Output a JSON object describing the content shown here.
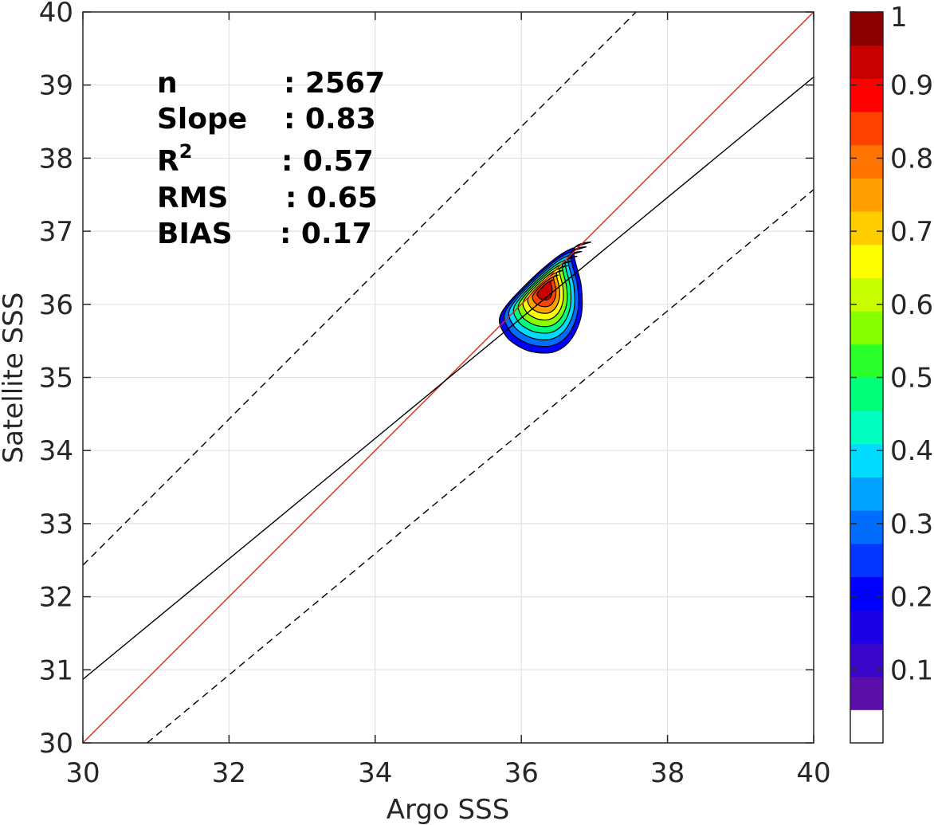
{
  "chart_data": {
    "type": "heatmap",
    "xlabel": "Argo SSS",
    "ylabel": "Satellite SSS",
    "xlim": [
      30,
      40
    ],
    "ylim": [
      30,
      40
    ],
    "xticks": [
      "30",
      "32",
      "34",
      "36",
      "38",
      "40"
    ],
    "yticks": [
      "30",
      "31",
      "32",
      "33",
      "34",
      "35",
      "36",
      "37",
      "38",
      "39",
      "40"
    ],
    "grid": true,
    "stats": [
      {
        "label": "n",
        "value": ": 2567"
      },
      {
        "label": "Slope",
        "value": ": 0.83"
      },
      {
        "label": "R",
        "sup": "2",
        "value": ": 0.57"
      },
      {
        "label": "RMS",
        "value": ": 0.65"
      },
      {
        "label": "BIAS",
        "value": ": 0.17"
      }
    ],
    "reference_lines": {
      "one_to_one": {
        "x": [
          30,
          40
        ],
        "y": [
          30,
          40
        ],
        "color": "#e0261f"
      },
      "fit": {
        "x": [
          30,
          40
        ],
        "y": [
          30.87,
          39.11
        ],
        "color": "#000000"
      },
      "upper_bound": {
        "x": [
          30,
          40
        ],
        "y": [
          32.43,
          42.43
        ],
        "color": "#000000",
        "dash": true
      },
      "lower_bound": {
        "x": [
          30.88,
          40
        ],
        "y": [
          30,
          37.57
        ],
        "color": "#000000",
        "dash": true
      }
    },
    "density": {
      "peak_x": 36.33,
      "peak_y": 36.22,
      "levels": [
        0.1,
        0.2,
        0.3,
        0.4,
        0.5,
        0.6,
        0.7,
        0.8,
        0.9
      ],
      "outer_contour": [
        [
          36.95,
          36.85
        ],
        [
          36.6,
          36.72
        ],
        [
          36.25,
          36.45
        ],
        [
          35.85,
          36.05
        ],
        [
          35.7,
          35.8
        ],
        [
          35.78,
          35.58
        ],
        [
          35.92,
          35.45
        ],
        [
          36.15,
          35.35
        ],
        [
          36.45,
          35.35
        ],
        [
          36.68,
          35.52
        ],
        [
          36.82,
          35.85
        ],
        [
          36.82,
          36.25
        ],
        [
          36.72,
          36.75
        ]
      ]
    },
    "colorbar": {
      "ticks": [
        "0.1",
        "0.2",
        "0.3",
        "0.4",
        "0.5",
        "0.6",
        "0.7",
        "0.8",
        "0.9",
        "1"
      ],
      "range": [
        0,
        1
      ],
      "colors": [
        "#ffffff",
        "#5a0fa8",
        "#3a06c9",
        "#1c00e6",
        "#0000fe",
        "#0536ff",
        "#006dff",
        "#00a4ff",
        "#00dbff",
        "#00ffc0",
        "#00ff7a",
        "#2bff2b",
        "#88ff00",
        "#c8ff00",
        "#ffff00",
        "#ffcc00",
        "#ffa000",
        "#ff7400",
        "#ff4200",
        "#ff0000",
        "#c80000",
        "#8a0000"
      ]
    }
  }
}
